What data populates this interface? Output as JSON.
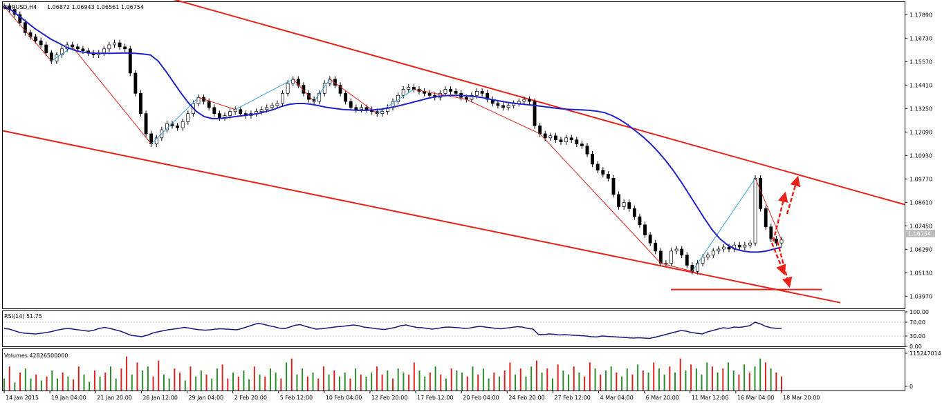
{
  "header": {
    "symbol": "EURUSD,H4",
    "ohlc": "1.06872 1.06943 1.06561 1.06754"
  },
  "rsi_label": "RSI(14) 51.75",
  "volume_label": "Volumes 42826500000",
  "price_marker": "1.06754",
  "colors": {
    "channel": "#e8211a",
    "moving_average": "#1f22c8",
    "zigzag_up": "#33a5e0",
    "zigzag_down": "#d9231d",
    "volume_up": "#2a8c2a",
    "volume_down": "#d9231d",
    "rsi_line": "#1a1a7a",
    "arrow": "#e8211a"
  },
  "chart_data": [
    {
      "type": "line",
      "pane": "price",
      "instrument": "EURUSD",
      "timeframe": "H4",
      "y_ticks": [
        "1.17890",
        "1.16730",
        "1.15570",
        "1.14410",
        "1.13250",
        "1.12090",
        "1.10930",
        "1.09770",
        "1.08610",
        "1.07450",
        "1.06290",
        "1.05130",
        "1.03970"
      ],
      "ylim": [
        1.034,
        1.1848
      ],
      "x_ticks": [
        "14 Jan 2015",
        "19 Jan 04:00",
        "21 Jan 20:00",
        "26 Jan 12:00",
        "29 Jan 04:00",
        "2 Feb 20:00",
        "5 Feb 12:00",
        "10 Feb 04:00",
        "12 Feb 20:00",
        "17 Feb 12:00",
        "20 Feb 04:00",
        "24 Feb 20:00",
        "27 Feb 12:00",
        "4 Mar 04:00",
        "6 Mar 20:00",
        "11 Mar 12:00",
        "16 Mar 04:00",
        "18 Mar 20:00"
      ],
      "close_series": [
        1.183,
        1.1815,
        1.179,
        1.175,
        1.17,
        1.168,
        1.166,
        1.164,
        1.16,
        1.156,
        1.159,
        1.162,
        1.164,
        1.163,
        1.162,
        1.161,
        1.16,
        1.159,
        1.16,
        1.162,
        1.164,
        1.165,
        1.163,
        1.162,
        1.15,
        1.14,
        1.13,
        1.12,
        1.115,
        1.118,
        1.122,
        1.125,
        1.124,
        1.123,
        1.126,
        1.13,
        1.135,
        1.138,
        1.136,
        1.133,
        1.13,
        1.128,
        1.129,
        1.131,
        1.132,
        1.13,
        1.129,
        1.13,
        1.131,
        1.132,
        1.133,
        1.134,
        1.135,
        1.14,
        1.145,
        1.147,
        1.144,
        1.14,
        1.137,
        1.136,
        1.14,
        1.145,
        1.147,
        1.144,
        1.14,
        1.136,
        1.133,
        1.132,
        1.133,
        1.132,
        1.131,
        1.13,
        1.131,
        1.133,
        1.136,
        1.139,
        1.142,
        1.143,
        1.142,
        1.141,
        1.14,
        1.139,
        1.138,
        1.14,
        1.142,
        1.141,
        1.14,
        1.138,
        1.137,
        1.139,
        1.141,
        1.14,
        1.137,
        1.135,
        1.134,
        1.133,
        1.134,
        1.135,
        1.136,
        1.137,
        1.136,
        1.124,
        1.12,
        1.118,
        1.119,
        1.117,
        1.116,
        1.118,
        1.117,
        1.115,
        1.114,
        1.11,
        1.105,
        1.102,
        1.1,
        1.098,
        1.09,
        1.084,
        1.086,
        1.083,
        1.079,
        1.075,
        1.07,
        1.066,
        1.062,
        1.056,
        1.056,
        1.062,
        1.063,
        1.06,
        1.055,
        1.052,
        1.056,
        1.059,
        1.06,
        1.062,
        1.063,
        1.064,
        1.063,
        1.065,
        1.064,
        1.065,
        1.066,
        1.098,
        1.083,
        1.074,
        1.068,
        1.066,
        1.0675
      ],
      "moving_average": [
        1.183,
        1.181,
        1.178,
        1.175,
        1.172,
        1.1695,
        1.167,
        1.165,
        1.163,
        1.1615,
        1.1605,
        1.16,
        1.1598,
        1.1598,
        1.1598,
        1.1599,
        1.16,
        1.1598,
        1.1595,
        1.159,
        1.156,
        1.151,
        1.1455,
        1.14,
        1.135,
        1.131,
        1.1285,
        1.1275,
        1.1275,
        1.128,
        1.1285,
        1.129,
        1.1295,
        1.13,
        1.131,
        1.132,
        1.1335,
        1.1345,
        1.135,
        1.135,
        1.1345,
        1.1338,
        1.133,
        1.1325,
        1.132,
        1.1318,
        1.1316,
        1.1316,
        1.1318,
        1.1322,
        1.1328,
        1.1336,
        1.1345,
        1.1355,
        1.1365,
        1.1375,
        1.1383,
        1.1388,
        1.139,
        1.139,
        1.1388,
        1.1385,
        1.138,
        1.1372,
        1.1365,
        1.1358,
        1.1352,
        1.1348,
        1.1344,
        1.134,
        1.1335,
        1.133,
        1.1325,
        1.1322,
        1.132,
        1.1318,
        1.1316,
        1.1312,
        1.1305,
        1.129,
        1.127,
        1.1245,
        1.1215,
        1.1185,
        1.115,
        1.111,
        1.1065,
        1.1015,
        1.096,
        1.09,
        1.084,
        1.078,
        1.0725,
        1.068,
        1.065,
        1.063,
        1.062,
        1.0615,
        1.0615,
        1.062,
        1.063,
        1.064
      ],
      "channel_upper": {
        "x": [
          "14 Jan 2015",
          "20 Mar 2015"
        ],
        "y": [
          1.188,
          1.085
        ]
      },
      "channel_lower": {
        "x": [
          "14 Jan 2015",
          "20 Mar 2015"
        ],
        "y": [
          1.1215,
          1.0365
        ]
      },
      "support_level": 1.043,
      "forecast_arrows": [
        "up",
        "down"
      ]
    },
    {
      "type": "line",
      "pane": "rsi",
      "name": "RSI(14)",
      "y_ticks": [
        "100.00",
        "70.00",
        "30.00",
        "0.00"
      ],
      "ylim": [
        0,
        100
      ],
      "values": [
        52,
        50,
        45,
        40,
        38,
        37,
        36,
        38,
        40,
        43,
        47,
        50,
        52,
        50,
        48,
        46,
        44,
        47,
        52,
        55,
        52,
        48,
        44,
        38,
        32,
        30,
        28,
        32,
        38,
        42,
        45,
        48,
        50,
        52,
        55,
        53,
        50,
        48,
        47,
        48,
        50,
        51,
        50,
        49,
        48,
        52,
        57,
        62,
        67,
        64,
        60,
        57,
        53,
        51,
        56,
        61,
        63,
        58,
        54,
        50,
        51,
        53,
        55,
        57,
        58,
        60,
        62,
        60,
        56,
        54,
        52,
        50,
        49,
        52,
        55,
        60,
        62,
        58,
        55,
        54,
        52,
        50,
        52,
        55,
        56,
        55,
        54,
        52,
        53,
        56,
        58,
        56,
        54,
        52,
        51,
        53,
        55,
        57,
        56,
        52,
        50,
        35,
        34,
        36,
        35,
        33,
        34,
        33,
        32,
        31,
        30,
        28,
        27,
        30,
        29,
        28,
        27,
        26,
        25,
        24,
        25,
        24,
        23,
        26,
        30,
        34,
        38,
        42,
        46,
        44,
        40,
        38,
        36,
        42,
        46,
        50,
        54,
        52,
        56,
        55,
        57,
        60,
        70,
        65,
        58,
        54,
        52,
        52
      ],
      "last": 51.75
    },
    {
      "type": "bar",
      "pane": "volume",
      "name": "Volumes",
      "y_ticks": [
        "115247014",
        "0"
      ],
      "last": 42826500000,
      "values": [
        30,
        60,
        20,
        45,
        55,
        30,
        40,
        25,
        35,
        50,
        30,
        45,
        35,
        28,
        60,
        40,
        22,
        50,
        35,
        45,
        60,
        30,
        55,
        85,
        40,
        70,
        50,
        60,
        35,
        75,
        40,
        30,
        55,
        45,
        25,
        60,
        35,
        50,
        40,
        30,
        55,
        65,
        30,
        45,
        35,
        50,
        28,
        60,
        40,
        35,
        55,
        45,
        30,
        70,
        80,
        40,
        55,
        35,
        45,
        30,
        60,
        40,
        50,
        35,
        45,
        30,
        55,
        40,
        35,
        45,
        60,
        40,
        50,
        30,
        55,
        45,
        40,
        70,
        50,
        35,
        45,
        60,
        40,
        30,
        55,
        50,
        45,
        35,
        60,
        40,
        55,
        30,
        45,
        35,
        50,
        70,
        40,
        55,
        35,
        60,
        75,
        45,
        55,
        30,
        65,
        50,
        40,
        60,
        45,
        35,
        70,
        55,
        40,
        50,
        60,
        45,
        35,
        55,
        40,
        65,
        50,
        45,
        70,
        55,
        40,
        60,
        45,
        80,
        50,
        65,
        55,
        40,
        70,
        60,
        45,
        55,
        70,
        50,
        40,
        65,
        45,
        60,
        80,
        70,
        55,
        45,
        35
      ],
      "up_down": "G R G R G G R G R G G R G R R G G R G R G G R R G R G G R R G G R R G R G G R G G R R G R G G R G R G G R G R G G R G R R G R G G R G R G G R R G R G G R R G G R G R G R G G R G R G G R G R R G R G G R G R G R G G R G R R G R G G R G G R G R G R G G R G R G R G G"
    }
  ]
}
